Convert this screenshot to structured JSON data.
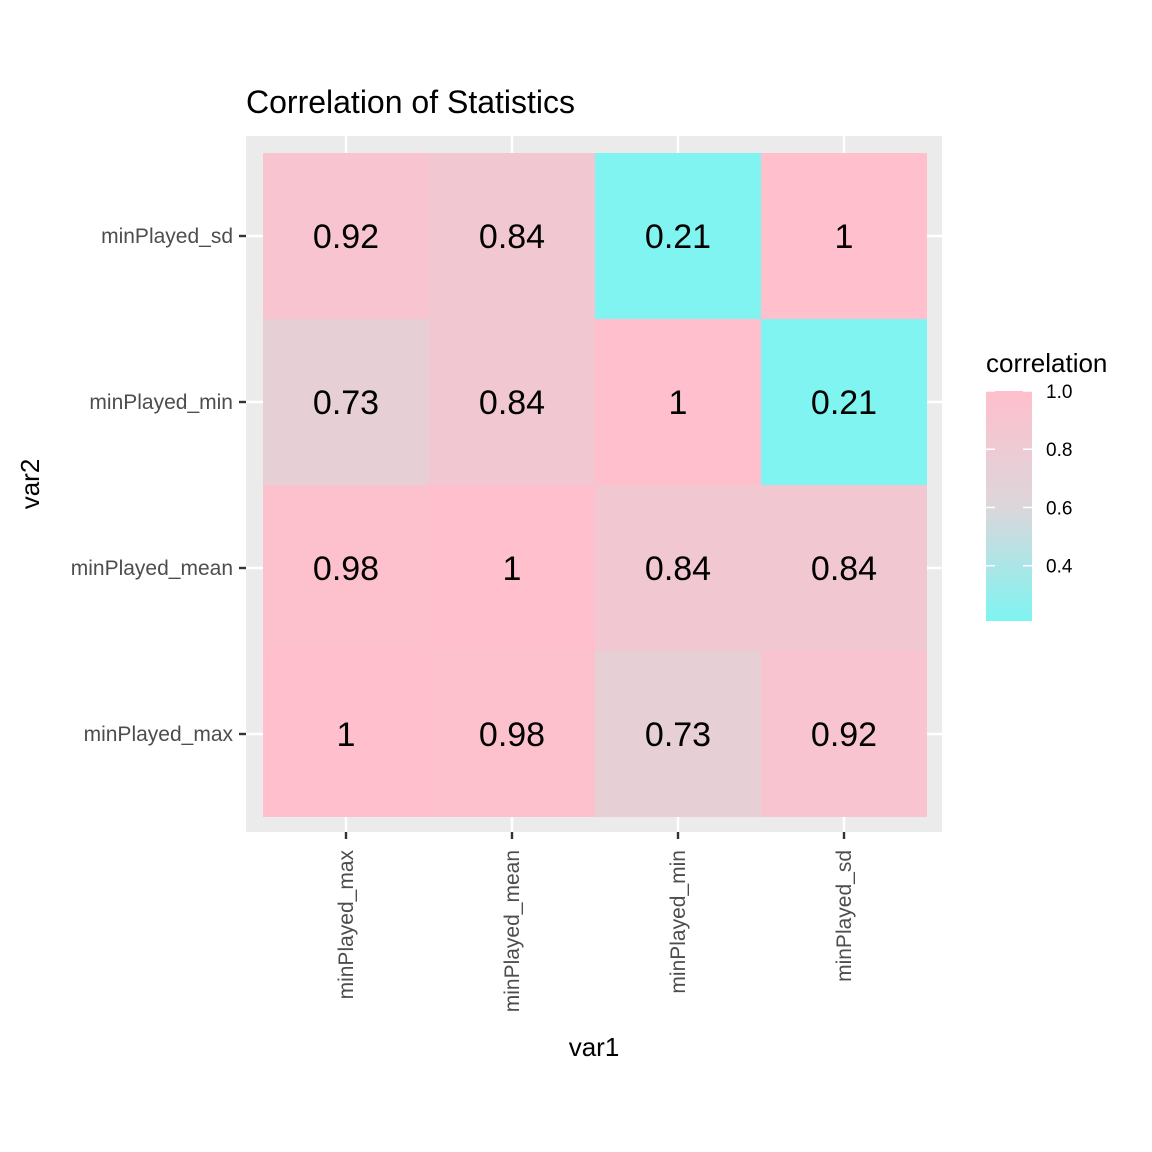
{
  "chart_data": {
    "type": "heatmap",
    "title": "Correlation of Statistics",
    "xlabel": "var1",
    "ylabel": "var2",
    "x_categories": [
      "minPlayed_max",
      "minPlayed_mean",
      "minPlayed_min",
      "minPlayed_sd"
    ],
    "y_categories": [
      "minPlayed_max",
      "minPlayed_mean",
      "minPlayed_min",
      "minPlayed_sd"
    ],
    "cells": [
      {
        "x": "minPlayed_max",
        "y": "minPlayed_max",
        "value": 1,
        "label": "1"
      },
      {
        "x": "minPlayed_mean",
        "y": "minPlayed_max",
        "value": 0.98,
        "label": "0.98"
      },
      {
        "x": "minPlayed_min",
        "y": "minPlayed_max",
        "value": 0.73,
        "label": "0.73"
      },
      {
        "x": "minPlayed_sd",
        "y": "minPlayed_max",
        "value": 0.92,
        "label": "0.92"
      },
      {
        "x": "minPlayed_max",
        "y": "minPlayed_mean",
        "value": 0.98,
        "label": "0.98"
      },
      {
        "x": "minPlayed_mean",
        "y": "minPlayed_mean",
        "value": 1,
        "label": "1"
      },
      {
        "x": "minPlayed_min",
        "y": "minPlayed_mean",
        "value": 0.84,
        "label": "0.84"
      },
      {
        "x": "minPlayed_sd",
        "y": "minPlayed_mean",
        "value": 0.84,
        "label": "0.84"
      },
      {
        "x": "minPlayed_max",
        "y": "minPlayed_min",
        "value": 0.73,
        "label": "0.73"
      },
      {
        "x": "minPlayed_mean",
        "y": "minPlayed_min",
        "value": 0.84,
        "label": "0.84"
      },
      {
        "x": "minPlayed_min",
        "y": "minPlayed_min",
        "value": 1,
        "label": "1"
      },
      {
        "x": "minPlayed_sd",
        "y": "minPlayed_min",
        "value": 0.21,
        "label": "0.21"
      },
      {
        "x": "minPlayed_max",
        "y": "minPlayed_sd",
        "value": 0.92,
        "label": "0.92"
      },
      {
        "x": "minPlayed_mean",
        "y": "minPlayed_sd",
        "value": 0.84,
        "label": "0.84"
      },
      {
        "x": "minPlayed_min",
        "y": "minPlayed_sd",
        "value": 0.21,
        "label": "0.21"
      },
      {
        "x": "minPlayed_sd",
        "y": "minPlayed_sd",
        "value": 1,
        "label": "1"
      }
    ],
    "color_scale": {
      "low_value": 0.21,
      "high_value": 1.0,
      "low_color": "#7ff4f1",
      "mid_color": "#dcd6db",
      "high_color": "#ffbfcc"
    },
    "legend": {
      "title": "correlation",
      "placement": "right",
      "breaks": [
        1.0,
        0.8,
        0.6,
        0.4
      ],
      "break_labels": [
        "1.0",
        "0.8",
        "0.6",
        "0.4"
      ]
    },
    "panel_background": "#ebebeb",
    "grid": true
  }
}
